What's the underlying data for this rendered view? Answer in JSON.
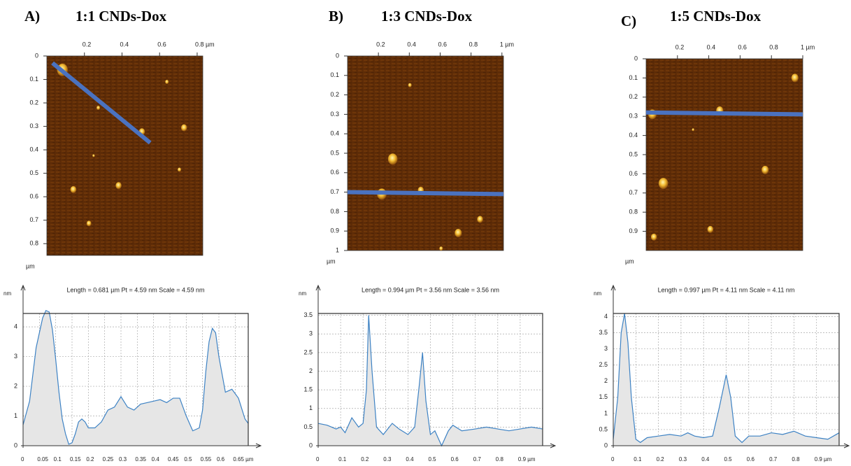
{
  "chart_data": [
    {
      "type": "image",
      "panel_label": "A)",
      "title": "1:1 CNDs-Dox",
      "ylabel": "µm",
      "xlim": [
        0,
        0.83
      ],
      "ylim": [
        0,
        0.85
      ],
      "xticks": [
        0.2,
        0.4,
        0.6,
        {
          "value": 0.8,
          "label": "0.8 µm"
        }
      ],
      "yticks": [
        0,
        0.1,
        0.2,
        0.3,
        0.4,
        0.5,
        0.6,
        0.7,
        0.8
      ],
      "scan_line": {
        "x": [
          0.03,
          0.55
        ],
        "y": [
          0.03,
          0.37
        ],
        "color": "#4a72c0"
      }
    },
    {
      "type": "line",
      "title": "Length = 0.681 µm  Pt = 4.59 nm  Scale = 4.59 nm",
      "ylabel": "nm",
      "xlim": [
        0,
        0.69
      ],
      "ylim": [
        0,
        4.45
      ],
      "grid": true,
      "color": "#3d82c4",
      "fill": "#e6e6e6",
      "xticks": [
        0,
        0.05,
        0.1,
        0.15,
        0.2,
        0.25,
        0.3,
        0.35,
        0.4,
        0.45,
        0.5,
        0.55,
        0.6,
        {
          "value": 0.65,
          "label": "0.65 µm"
        }
      ],
      "yticks": [
        0,
        1,
        2,
        3,
        4
      ],
      "x": [
        0,
        0.02,
        0.04,
        0.06,
        0.07,
        0.08,
        0.09,
        0.1,
        0.11,
        0.12,
        0.13,
        0.14,
        0.15,
        0.16,
        0.17,
        0.18,
        0.19,
        0.2,
        0.22,
        0.24,
        0.26,
        0.28,
        0.3,
        0.32,
        0.34,
        0.36,
        0.38,
        0.4,
        0.42,
        0.44,
        0.46,
        0.48,
        0.5,
        0.52,
        0.54,
        0.55,
        0.56,
        0.57,
        0.58,
        0.59,
        0.6,
        0.62,
        0.64,
        0.66,
        0.68,
        0.69
      ],
      "values": [
        0.7,
        1.5,
        3.3,
        4.3,
        4.55,
        4.5,
        3.9,
        2.9,
        1.8,
        0.9,
        0.4,
        0.05,
        0.1,
        0.4,
        0.8,
        0.9,
        0.8,
        0.6,
        0.6,
        0.8,
        1.2,
        1.3,
        1.65,
        1.3,
        1.2,
        1.4,
        1.45,
        1.5,
        1.55,
        1.45,
        1.6,
        1.6,
        1.0,
        0.5,
        0.6,
        1.2,
        2.5,
        3.5,
        3.95,
        3.8,
        3.0,
        1.8,
        1.9,
        1.6,
        0.9,
        0.75
      ]
    },
    {
      "type": "image",
      "panel_label": "B)",
      "title": "1:3 CNDs-Dox",
      "ylabel": "µm",
      "xlim": [
        0,
        1.01
      ],
      "ylim": [
        0,
        1
      ],
      "xticks": [
        0.2,
        0.4,
        0.6,
        0.8,
        {
          "value": 1,
          "label": "1 µm"
        }
      ],
      "yticks": [
        0,
        0.1,
        0.2,
        0.3,
        0.4,
        0.5,
        0.6,
        0.7,
        0.8,
        0.9,
        1
      ],
      "scan_line": {
        "x": [
          0,
          1.01
        ],
        "y": [
          0.7,
          0.71
        ],
        "color": "#4a72c0"
      }
    },
    {
      "type": "line",
      "title": "Length = 0.994 µm  Pt = 3.56 nm  Scale = 3.56 nm",
      "ylabel": "nm",
      "xlim": [
        0,
        1
      ],
      "ylim": [
        0,
        3.55
      ],
      "grid": true,
      "color": "#3d82c4",
      "fill": "#e6e6e6",
      "xticks": [
        0,
        0.1,
        0.2,
        0.3,
        0.4,
        0.5,
        0.6,
        0.7,
        0.8,
        {
          "value": 0.9,
          "label": "0.9 µm"
        }
      ],
      "yticks": [
        0,
        0.5,
        1,
        1.5,
        2,
        2.5,
        3,
        3.5
      ],
      "x": [
        0,
        0.04,
        0.08,
        0.1,
        0.12,
        0.15,
        0.18,
        0.2,
        0.215,
        0.225,
        0.24,
        0.26,
        0.29,
        0.33,
        0.36,
        0.4,
        0.43,
        0.45,
        0.465,
        0.48,
        0.5,
        0.52,
        0.55,
        0.58,
        0.6,
        0.64,
        0.7,
        0.75,
        0.8,
        0.85,
        0.9,
        0.95,
        1
      ],
      "values": [
        0.6,
        0.55,
        0.45,
        0.5,
        0.35,
        0.75,
        0.5,
        0.6,
        1.5,
        3.5,
        2.0,
        0.5,
        0.3,
        0.6,
        0.45,
        0.3,
        0.5,
        1.6,
        2.5,
        1.2,
        0.3,
        0.4,
        0.0,
        0.4,
        0.55,
        0.4,
        0.45,
        0.5,
        0.45,
        0.4,
        0.45,
        0.5,
        0.45
      ]
    },
    {
      "type": "image",
      "panel_label": "C)",
      "title": "1:5 CNDs-Dox",
      "ylabel": "µm",
      "xlim": [
        0,
        1.0
      ],
      "ylim": [
        0,
        1
      ],
      "xticks": [
        0.2,
        0.4,
        0.6,
        0.8,
        {
          "value": 1,
          "label": "1 µm"
        }
      ],
      "yticks": [
        0,
        0.1,
        0.2,
        0.3,
        0.4,
        0.5,
        0.6,
        0.7,
        0.8,
        0.9
      ],
      "scan_line": {
        "x": [
          0,
          1.0
        ],
        "y": [
          0.28,
          0.29
        ],
        "color": "#4a72c0"
      }
    },
    {
      "type": "line",
      "title": "Length = 0.997 µm  Pt = 4.11 nm  Scale = 4.11 nm",
      "ylabel": "nm",
      "xlim": [
        0,
        1
      ],
      "ylim": [
        0,
        4.1
      ],
      "grid": true,
      "color": "#3d82c4",
      "fill": "#e6e6e6",
      "xticks": [
        0,
        0.1,
        0.2,
        0.3,
        0.4,
        0.5,
        0.6,
        0.7,
        0.8,
        {
          "value": 0.9,
          "label": "0.9 µm"
        }
      ],
      "yticks": [
        0,
        0.5,
        1,
        1.5,
        2,
        2.5,
        3,
        3.5,
        4
      ],
      "x": [
        0,
        0.02,
        0.035,
        0.05,
        0.065,
        0.08,
        0.1,
        0.12,
        0.15,
        0.2,
        0.25,
        0.3,
        0.33,
        0.36,
        0.4,
        0.44,
        0.47,
        0.5,
        0.52,
        0.54,
        0.57,
        0.6,
        0.65,
        0.7,
        0.75,
        0.8,
        0.85,
        0.9,
        0.95,
        1
      ],
      "values": [
        0.2,
        1.5,
        3.5,
        4.1,
        3.2,
        1.5,
        0.2,
        0.1,
        0.25,
        0.3,
        0.35,
        0.3,
        0.4,
        0.3,
        0.25,
        0.3,
        1.2,
        2.2,
        1.5,
        0.3,
        0.1,
        0.3,
        0.3,
        0.4,
        0.35,
        0.45,
        0.3,
        0.25,
        0.2,
        0.4
      ]
    }
  ]
}
